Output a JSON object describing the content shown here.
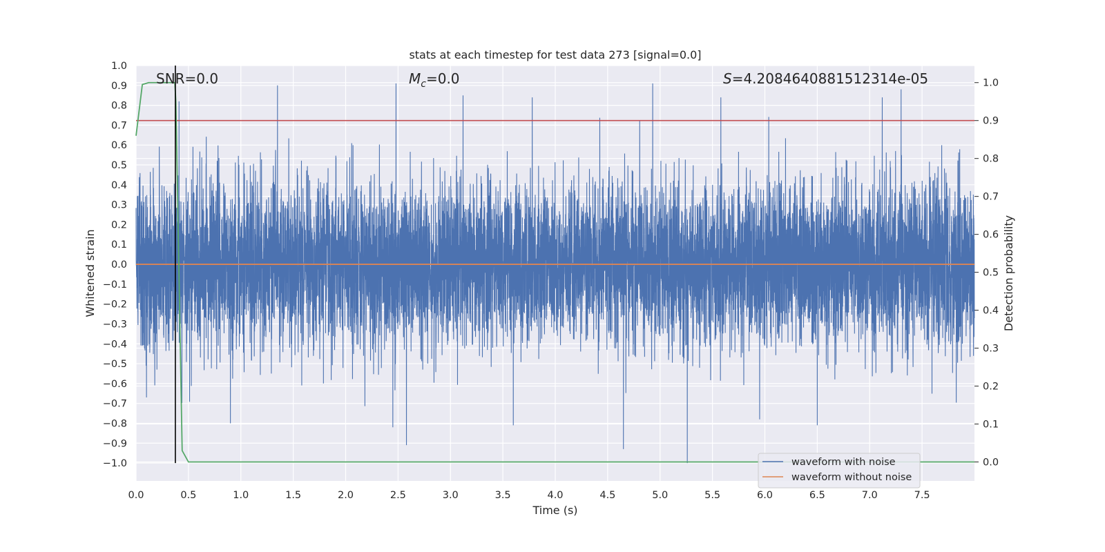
{
  "chart_data": {
    "type": "line",
    "title": "stats at each timestep for test data 273 [signal=0.0]",
    "xlabel": "Time (s)",
    "ylabel": "Whitened strain",
    "y2label": "Detection probability",
    "xlim": [
      0.0,
      8.0
    ],
    "ylim": [
      -1.09,
      1.0
    ],
    "y2lim": [
      -0.05,
      1.045
    ],
    "xticks": [
      "0.0",
      "0.5",
      "1.0",
      "1.5",
      "2.0",
      "2.5",
      "3.0",
      "3.5",
      "4.0",
      "4.5",
      "5.0",
      "5.5",
      "6.0",
      "6.5",
      "7.0",
      "7.5"
    ],
    "yticks": [
      "1.0",
      "0.9",
      "0.8",
      "0.7",
      "0.6",
      "0.5",
      "0.4",
      "0.3",
      "0.2",
      "0.1",
      "0.0",
      "−0.1",
      "−0.2",
      "−0.3",
      "−0.4",
      "−0.5",
      "−0.6",
      "−0.7",
      "−0.8",
      "−0.9",
      "−1.0"
    ],
    "y2ticks": [
      "1.0",
      "0.9",
      "0.8",
      "0.7",
      "0.6",
      "0.5",
      "0.4",
      "0.3",
      "0.2",
      "0.1",
      "0.0"
    ],
    "grid": true,
    "legend_position": "lower-right",
    "annotations": {
      "snr": "SNR=0.0",
      "mc_symbol": "M",
      "mc_sub": "c",
      "mc_value": "=0.0",
      "s_symbol": "S",
      "s_value": "=4.2084640881512314e-05"
    },
    "series": [
      {
        "name": "waveform with noise",
        "axis": "left",
        "color": "#4c72b0",
        "description_envelope": {
          "t_start": 0.0,
          "t_end": 8.0,
          "sample_rate": 1024,
          "typical_positive_peak": 0.55,
          "typical_negative_peak": -0.5,
          "max": 0.91,
          "min": -1.0
        },
        "notable_peaks": [
          {
            "t": 0.1,
            "y": 0.64
          },
          {
            "t": 0.41,
            "y": 0.82
          },
          {
            "t": 0.9,
            "y": 0.83
          },
          {
            "t": 1.35,
            "y": 0.9
          },
          {
            "t": 2.48,
            "y": 0.91
          },
          {
            "t": 3.12,
            "y": 0.85
          },
          {
            "t": 3.78,
            "y": 0.84
          },
          {
            "t": 4.93,
            "y": 0.91
          },
          {
            "t": 5.58,
            "y": 0.84
          },
          {
            "t": 6.5,
            "y": 0.88
          },
          {
            "t": 7.12,
            "y": 0.84
          },
          {
            "t": 7.3,
            "y": 0.88
          },
          {
            "t": 0.1,
            "y": -0.67
          },
          {
            "t": 0.9,
            "y": -0.8
          },
          {
            "t": 2.58,
            "y": -0.91
          },
          {
            "t": 2.45,
            "y": -0.82
          },
          {
            "t": 3.6,
            "y": -0.81
          },
          {
            "t": 4.65,
            "y": -0.93
          },
          {
            "t": 5.26,
            "y": -1.0
          },
          {
            "t": 6.5,
            "y": -0.81
          },
          {
            "t": 5.95,
            "y": -0.78
          }
        ]
      },
      {
        "name": "waveform without noise",
        "axis": "left",
        "color": "#dd8452",
        "x": [
          0.0,
          8.0
        ],
        "y": [
          0.0,
          0.0
        ]
      },
      {
        "name": "detection probability",
        "axis": "right",
        "color": "#55a868",
        "x": [
          0.0,
          0.06,
          0.12,
          0.2,
          0.3,
          0.37,
          0.38,
          0.44,
          0.5,
          8.0
        ],
        "y": [
          0.86,
          0.995,
          1.0,
          1.0,
          1.0,
          1.0,
          0.95,
          0.03,
          0.0,
          0.0
        ]
      },
      {
        "name": "threshold",
        "axis": "right",
        "color": "#c44e52",
        "x": [
          0.0,
          8.0
        ],
        "y": [
          0.9,
          0.9
        ]
      },
      {
        "name": "trigger time",
        "axis": "left",
        "color": "#000000",
        "vline_x": 0.375,
        "y_range": [
          -1.0,
          1.0
        ]
      }
    ],
    "legend": [
      "waveform with noise",
      "waveform without noise"
    ]
  }
}
